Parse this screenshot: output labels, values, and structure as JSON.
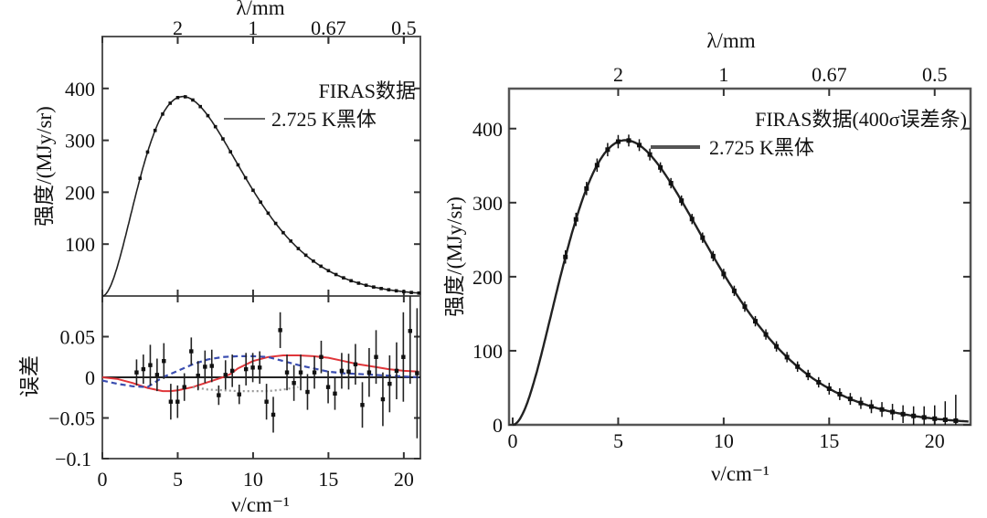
{
  "chart_data": [
    {
      "type": "scatter",
      "panel": "left-top",
      "xlabel": "ν/cm⁻¹",
      "ylabel": "强度/(MJy/sr)",
      "top_axis_label": "λ/mm",
      "top_ticks": [
        {
          "label": "2",
          "nu": 5
        },
        {
          "label": "1",
          "nu": 10
        },
        {
          "label": "0.67",
          "nu": 15
        },
        {
          "label": "0.5",
          "nu": 20
        }
      ],
      "xlim": [
        0,
        21.1
      ],
      "ylim": [
        0,
        500
      ],
      "yticks": [
        "100",
        "200",
        "300",
        "400"
      ],
      "legend": {
        "data_label": "FIRAS数据",
        "curve_label": "2.725 K黑体",
        "placement": "top-right"
      },
      "blackbody_T": 2.725
    },
    {
      "type": "scatter",
      "panel": "left-bottom",
      "ylabel": "误差",
      "xlabel": "ν/cm⁻¹",
      "xlim": [
        0,
        21.1
      ],
      "ylim": [
        -0.1,
        0.1
      ],
      "xticks": [
        "0",
        "5",
        "10",
        "15",
        "20"
      ],
      "yticks": [
        "0.05",
        "0",
        "−0.05",
        "−0.1"
      ],
      "residuals": {
        "nu": [
          2.27,
          2.72,
          3.18,
          3.63,
          4.08,
          4.54,
          4.99,
          5.44,
          5.9,
          6.35,
          6.81,
          7.26,
          7.72,
          8.17,
          8.62,
          9.08,
          9.53,
          9.98,
          10.44,
          10.89,
          11.34,
          11.8,
          12.25,
          12.71,
          13.16,
          13.61,
          14.07,
          14.52,
          14.98,
          15.43,
          15.88,
          16.34,
          16.79,
          17.25,
          17.7,
          18.16,
          18.61,
          19.06,
          19.52,
          19.97,
          20.42,
          20.88
        ],
        "value": [
          0.006,
          0.01,
          0.015,
          0.003,
          0.02,
          -0.03,
          -0.03,
          -0.012,
          0.032,
          0.002,
          0.013,
          0.014,
          -0.022,
          0.003,
          0.008,
          -0.021,
          0.01,
          0.012,
          0.012,
          -0.03,
          -0.046,
          0.058,
          0.006,
          -0.007,
          0.006,
          -0.018,
          0.006,
          0.025,
          -0.012,
          -0.02,
          0.008,
          0.007,
          0.016,
          -0.034,
          0.006,
          0.025,
          -0.027,
          -0.008,
          0.008,
          0.025,
          0.057,
          0.005
        ],
        "error": [
          0.016,
          0.018,
          0.025,
          0.02,
          0.022,
          0.022,
          0.02,
          0.017,
          0.017,
          0.018,
          0.02,
          0.02,
          0.012,
          0.018,
          0.02,
          0.012,
          0.02,
          0.018,
          0.02,
          0.022,
          0.022,
          0.022,
          0.022,
          0.022,
          0.022,
          0.022,
          0.02,
          0.02,
          0.02,
          0.02,
          0.022,
          0.022,
          0.025,
          0.028,
          0.03,
          0.033,
          0.033,
          0.035,
          0.035,
          0.055,
          0.065,
          0.08
        ]
      },
      "model_curves": [
        {
          "name": "red",
          "color": "#e0363a",
          "style": "solid",
          "nu": [
            0,
            1,
            2,
            3,
            4,
            4.5,
            5,
            6,
            7,
            8,
            8.5,
            9,
            10,
            11,
            12,
            13,
            14,
            15,
            16,
            17,
            18,
            19,
            20,
            21
          ],
          "value": [
            0,
            -0.002,
            -0.007,
            -0.013,
            -0.017,
            -0.017,
            -0.016,
            -0.012,
            -0.006,
            0,
            0.004,
            0.011,
            0.02,
            0.025,
            0.027,
            0.027,
            0.026,
            0.024,
            0.02,
            0.016,
            0.013,
            0.01,
            0.008,
            0.007
          ]
        },
        {
          "name": "blue",
          "color": "#3a4db0",
          "style": "dashed",
          "nu": [
            0,
            1,
            2,
            3,
            4,
            5,
            6,
            7,
            8,
            9,
            10,
            11,
            12,
            13,
            14,
            15,
            16,
            17,
            18,
            19,
            20,
            21
          ],
          "value": [
            -0.004,
            -0.008,
            -0.011,
            -0.012,
            0,
            0.008,
            0.016,
            0.022,
            0.025,
            0.026,
            0.026,
            0.025,
            0.02,
            0.015,
            0.011,
            0.007,
            0.005,
            0.004,
            0.003,
            0.002,
            0.001,
            0
          ]
        },
        {
          "name": "gray",
          "color": "#9a9a9a",
          "style": "dotted",
          "nu": [
            6,
            7,
            8,
            9,
            10,
            11,
            12,
            13
          ],
          "value": [
            -0.012,
            -0.015,
            -0.016,
            -0.017,
            -0.017,
            -0.017,
            -0.015,
            -0.012
          ]
        }
      ]
    },
    {
      "type": "scatter",
      "panel": "right",
      "xlabel": "ν/cm⁻¹",
      "ylabel": "强度/(MJy/sr)",
      "top_axis_label": "λ/mm",
      "top_ticks": [
        {
          "label": "2",
          "nu": 5
        },
        {
          "label": "1",
          "nu": 10
        },
        {
          "label": "0.67",
          "nu": 15
        },
        {
          "label": "0.5",
          "nu": 20
        }
      ],
      "xlim": [
        0,
        21.7
      ],
      "ylim": [
        0,
        454
      ],
      "xticks": [
        "0",
        "5",
        "10",
        "15",
        "20"
      ],
      "yticks": [
        "0",
        "100",
        "200",
        "300",
        "400"
      ],
      "legend": {
        "data_label": "FIRAS数据(400σ误差条)",
        "curve_label": "2.725 K黑体",
        "placement": "top-right"
      },
      "blackbody_T": 2.725,
      "points": {
        "nu": [
          2.5,
          3,
          3.5,
          4,
          4.5,
          5,
          5.5,
          6,
          6.5,
          7,
          7.5,
          8,
          8.5,
          9,
          9.5,
          10,
          10.5,
          11,
          11.5,
          12,
          12.5,
          13,
          13.5,
          14,
          14.5,
          15,
          15.5,
          16,
          16.5,
          17,
          17.5,
          18,
          18.5,
          19,
          19.5,
          20,
          20.5,
          21
        ],
        "intensity": [
          226.7,
          277.4,
          319.1,
          350.6,
          371.6,
          382.4,
          383.9,
          377.7,
          365,
          347.5,
          326.3,
          302.7,
          277.9,
          252.7,
          227.8,
          203.7,
          180.9,
          159.6,
          139.9,
          122,
          105.9,
          91.4,
          78.6,
          67.3,
          57.4,
          48.8,
          41.4,
          35,
          29.4,
          24.7,
          20.7,
          17.3,
          14.4,
          12,
          10,
          8.3,
          6.8,
          5.6
        ],
        "error_400sigma": [
          9,
          9,
          9,
          9,
          9,
          9,
          8,
          8,
          8,
          7,
          7,
          7,
          7,
          7,
          7,
          7,
          7,
          7,
          7,
          7,
          7,
          7,
          7,
          7,
          7,
          8,
          8,
          8,
          8,
          9,
          10,
          11,
          12,
          13,
          15,
          18,
          25,
          35
        ]
      }
    }
  ]
}
